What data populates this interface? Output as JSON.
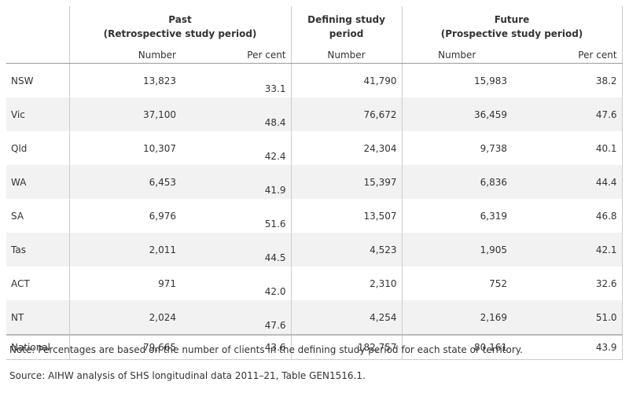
{
  "table": {
    "groups": [
      {
        "title": "Past",
        "subtitle": "(Retrospective study period)"
      },
      {
        "title": "Defining study period"
      },
      {
        "title": "Future",
        "subtitle": "(Prospective study period)"
      }
    ],
    "columns": [
      "Number",
      "Per cent",
      "Number",
      "Number",
      "Per cent"
    ],
    "rows": [
      [
        "NSW",
        "13,823",
        "33.1",
        "41,790",
        "15,983",
        "38.2"
      ],
      [
        "Vic",
        "37,100",
        "48.4",
        "76,672",
        "36,459",
        "47.6"
      ],
      [
        "Qld",
        "10,307",
        "42.4",
        "24,304",
        "9,738",
        "40.1"
      ],
      [
        "WA",
        "6,453",
        "41.9",
        "15,397",
        "6,836",
        "44.4"
      ],
      [
        "SA",
        "6,976",
        "51.6",
        "13,507",
        "6,319",
        "46.8"
      ],
      [
        "Tas",
        "2,011",
        "44.5",
        "4,523",
        "1,905",
        "42.1"
      ],
      [
        "ACT",
        "971",
        "42.0",
        "2,310",
        "752",
        "32.6"
      ],
      [
        "NT",
        "2,024",
        "47.6",
        "4,254",
        "2,169",
        "51.0"
      ]
    ],
    "total": [
      "National",
      "79,665",
      "43.6",
      "182,757",
      "80,161",
      "43.9"
    ]
  },
  "notes": {
    "note": "Note: Percentages are based on the number of clients in the defining study period for each state or territory.",
    "source": "Source: AIHW analysis of SHS longitudinal data 2011–21, Table GEN1516.1."
  }
}
